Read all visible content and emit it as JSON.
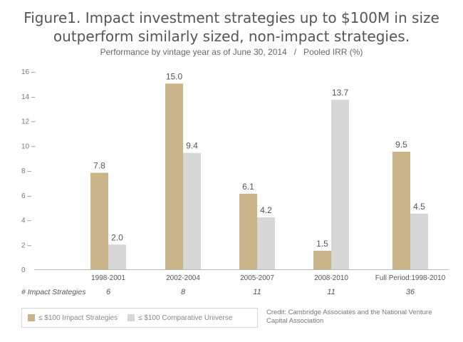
{
  "title_line1": "Figure1. Impact investment strategies up to $100M in size",
  "title_line2": "outperform similarly sized, non-impact strategies.",
  "subtitle": "Performance by vintage year as of June 30, 2014   /   Pooled IRR (%)",
  "credit": "Credit: Cambridge Associates and the National Venture Capital Association",
  "colors": {
    "impact": "#c9b48a",
    "comparative": "#d8d7d7",
    "axis": "#bbbbbb",
    "text": "#555555"
  },
  "chart_data": {
    "type": "bar",
    "title": "Figure1. Impact investment strategies up to $100M in size outperform similarly sized, non-impact strategies.",
    "subtitle": "Performance by vintage year as of June 30, 2014 / Pooled IRR (%)",
    "categories": [
      "1998-2001",
      "2002-2004",
      "2005-2007",
      "2008-2010",
      "Full Period:1998-2010"
    ],
    "series": [
      {
        "name": "≤ $100 Impact Strategies",
        "values": [
          7.8,
          15.0,
          6.1,
          1.5,
          9.5
        ],
        "labels": [
          "7.8",
          "15.0",
          "6.1",
          "1.5",
          "9.5"
        ]
      },
      {
        "name": "≤ $100 Comparative Universe",
        "values": [
          2.0,
          9.4,
          4.2,
          13.7,
          4.5
        ],
        "labels": [
          "2.0",
          "9.4",
          "4.2",
          "13.7",
          "4.5"
        ]
      }
    ],
    "ylim": [
      0,
      16
    ],
    "yticks": [
      "0",
      "2 –",
      "4 –",
      "6 –",
      "8 –",
      "10 –",
      "12 –",
      "14 –",
      "16 –"
    ],
    "legend": "bottom-left",
    "grid": false,
    "impact_strategies_label": "# Impact Strategies",
    "impact_strategies_counts": [
      "6",
      "8",
      "11",
      "11",
      "36"
    ]
  }
}
